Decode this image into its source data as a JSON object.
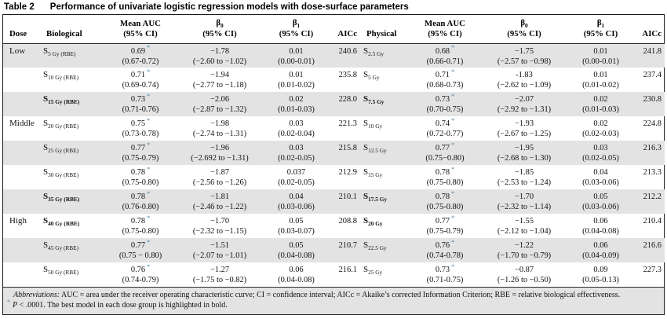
{
  "title": {
    "label": "Table 2",
    "caption": "Performance of univariate logistic regression models with dose-surface parameters"
  },
  "columns": {
    "dose": "Dose",
    "biological": "Biological",
    "physical": "Physical",
    "aicc": "AICc",
    "mean_auc": {
      "line1": "Mean AUC",
      "line2": "(95% CI)"
    },
    "beta0": {
      "base": "β",
      "sub": "0",
      "line2": "(95% CI)"
    },
    "beta1": {
      "base": "β",
      "sub": "1",
      "line2": "(95% CI)"
    }
  },
  "colors": {
    "row_shading": "#e3e3e3",
    "footnote_background": "#e3e3e3",
    "border": "#1c1c1c",
    "asterisk_marker": "#4f81a4"
  },
  "rows": [
    {
      "dose": "Low",
      "best": false,
      "shaded": true,
      "bio": {
        "base": "S",
        "sub": "5 Gy (RBE)",
        "auc": "0.69",
        "marker": "*",
        "auc_ci": "(0.67-0.72)",
        "b0": "−1.78",
        "b0_ci": "(−2.60 to −1.02)",
        "b1": "0.01",
        "b1_ci": "(0.00-0.01)",
        "aicc": "240.6"
      },
      "phys": {
        "base": "S",
        "sub": "2.5 Gy",
        "auc": "0.68",
        "marker": "*",
        "auc_ci": "(0.66-0.71)",
        "b0": "−1.75",
        "b0_ci": "(−2.57 to −0.98)",
        "b1": "0.01",
        "b1_ci": "(0.00-0.01)",
        "aicc": "241.8"
      }
    },
    {
      "dose": "",
      "best": false,
      "shaded": false,
      "bio": {
        "base": "S",
        "sub": "10 Gy (RBE)",
        "auc": "0.71",
        "marker": "*",
        "auc_ci": "(0.69-0.74)",
        "b0": "−1.94",
        "b0_ci": "(−2.77 to −1.18)",
        "b1": "0.01",
        "b1_ci": "(0.01-0.02)",
        "aicc": "235.8"
      },
      "phys": {
        "base": "S",
        "sub": "5 Gy",
        "auc": "0.71",
        "marker": "*",
        "auc_ci": "(0.68-0.73)",
        "b0": "-1.83",
        "b0_ci": "(−2.62 to −1.09)",
        "b1": "0.01",
        "b1_ci": "(0.01-0.02)",
        "aicc": "237.4"
      }
    },
    {
      "dose": "",
      "best": true,
      "shaded": true,
      "bio": {
        "base": "S",
        "sub": "15 Gy (RBE)",
        "auc": "0.73",
        "marker": "*",
        "auc_ci": "(0.71-0.76)",
        "b0": "−2.06",
        "b0_ci": "(−2.87 to −1.32)",
        "b1": "0.02",
        "b1_ci": "(0.01-0.03)",
        "aicc": "228.0"
      },
      "phys": {
        "base": "S",
        "sub": "7.5 Gy",
        "auc": "0.73",
        "marker": "*",
        "auc_ci": "(0.70-0.75)",
        "b0": "−2.07",
        "b0_ci": "(−2.92 to −1.31)",
        "b1": "0.02",
        "b1_ci": "(0.01-0.03)",
        "aicc": "230.8"
      }
    },
    {
      "dose": "Middle",
      "best": false,
      "shaded": false,
      "bio": {
        "base": "S",
        "sub": "20 Gy (RBE)",
        "auc": "0.75",
        "marker": "*",
        "auc_ci": "(0.73-0.78)",
        "b0": "−1.98",
        "b0_ci": "(−2.74 to −1.31)",
        "b1": "0.03",
        "b1_ci": "(0.02-0.04)",
        "aicc": "221.3"
      },
      "phys": {
        "base": "S",
        "sub": "10 Gy",
        "auc": "0.74",
        "marker": "*",
        "auc_ci": "(0.72-0.77)",
        "b0": "−1.93",
        "b0_ci": "(−2.67 to −1.25)",
        "b1": "0.02",
        "b1_ci": "(0.02-0.03)",
        "aicc": "224.8"
      }
    },
    {
      "dose": "",
      "best": false,
      "shaded": true,
      "bio": {
        "base": "S",
        "sub": "25 Gy (RBE)",
        "auc": "0.77",
        "marker": "*",
        "auc_ci": "(0.75-0.79)",
        "b0": "−1.96",
        "b0_ci": "(−2.692 to −1.31)",
        "b1": "0.03",
        "b1_ci": "(0.02-0.05)",
        "aicc": "215.8"
      },
      "phys": {
        "base": "S",
        "sub": "12.5 Gy",
        "auc": "0.77",
        "marker": "*",
        "auc_ci": "(0.75−0.80)",
        "b0": "−1.95",
        "b0_ci": "(−2.68 to −1.30)",
        "b1": "0.03",
        "b1_ci": "(0.02-0.05)",
        "aicc": "216.3"
      }
    },
    {
      "dose": "",
      "best": false,
      "shaded": false,
      "bio": {
        "base": "S",
        "sub": "30 Gy (RBE)",
        "auc": "0.78",
        "marker": "*",
        "auc_ci": "(0.75-0.80)",
        "b0": "−1.87",
        "b0_ci": "(−2.56 to −1.26)",
        "b1": "0.037",
        "b1_ci": "(0.02-0.05)",
        "aicc": "212.9"
      },
      "phys": {
        "base": "S",
        "sub": "15 Gy",
        "auc": "0.78",
        "marker": "*",
        "auc_ci": "(0.75-0.80)",
        "b0": "−1.85",
        "b0_ci": "(−2.53 to −1.24)",
        "b1": "0.04",
        "b1_ci": "(0.03-0.06)",
        "aicc": "213.3"
      }
    },
    {
      "dose": "",
      "best": true,
      "shaded": true,
      "bio": {
        "base": "S",
        "sub": "35 Gy (RBE)",
        "auc": "0.78",
        "marker": "*",
        "auc_ci": "(0.76-0.80)",
        "b0": "−1.81",
        "b0_ci": "(−2.46 to −1.22)",
        "b1": "0.04",
        "b1_ci": "(0.03-0.06)",
        "aicc": "210.1"
      },
      "phys": {
        "base": "S",
        "sub": "17.5 Gy",
        "auc": "0.78",
        "marker": "*",
        "auc_ci": "(0.75-0.80)",
        "b0": "−1.70",
        "b0_ci": "(−2.32 to −1.14)",
        "b1": "0.05",
        "b1_ci": "(0.03-0.06)",
        "aicc": "212.2"
      }
    },
    {
      "dose": "High",
      "best": true,
      "shaded": false,
      "bio": {
        "base": "S",
        "sub": "40 Gy (RBE)",
        "auc": "0.78",
        "marker": "*",
        "auc_ci": "(0.75-0.80)",
        "b0": "−1.70",
        "b0_ci": "(−2.32 to −1.15)",
        "b1": "0.05",
        "b1_ci": "(0.03-0.07)",
        "aicc": "208.8"
      },
      "phys": {
        "base": "S",
        "sub": "20 Gy",
        "auc": "0.77",
        "marker": "*",
        "auc_ci": "(0.75-0.79)",
        "b0": "−1.55",
        "b0_ci": "(−2.12 to −1.04)",
        "b1": "0.06",
        "b1_ci": "(0.04-0.08)",
        "aicc": "210.4"
      }
    },
    {
      "dose": "",
      "best": false,
      "shaded": true,
      "bio": {
        "base": "S",
        "sub": "45 Gy (RBE)",
        "auc": "0.77",
        "marker": "*",
        "auc_ci": "(0.75 − 0.80)",
        "b0": "−1.51",
        "b0_ci": "(−2.07 to −1.01)",
        "b1": "0.05",
        "b1_ci": "(0.04-0.08)",
        "aicc": "210.7"
      },
      "phys": {
        "base": "S",
        "sub": "22.5 Gy",
        "auc": "0.76",
        "marker": "*",
        "auc_ci": "(0.74-0.78)",
        "b0": "−1.22",
        "b0_ci": "(−1.70 to −0.79)",
        "b1": "0.06",
        "b1_ci": "(0.04-0.09)",
        "aicc": "216.6"
      }
    },
    {
      "dose": "",
      "best": false,
      "shaded": false,
      "bio": {
        "base": "S",
        "sub": "50 Gy (RBE)",
        "auc": "0.76",
        "marker": "*",
        "auc_ci": "(0.74-0.79)",
        "b0": "−1.27",
        "b0_ci": "(−1.75 to −0.82)",
        "b1": "0.06",
        "b1_ci": "(0.04-0.08)",
        "aicc": "216.1"
      },
      "phys": {
        "base": "S",
        "sub": "25 Gy",
        "auc": "0.73",
        "marker": "*",
        "auc_ci": "(0.71-0.75)",
        "b0": "−0.87",
        "b0_ci": "(−1.26 to −0.50)",
        "b1": "0.09",
        "b1_ci": "(0.05-0.13)",
        "aicc": "227.3"
      }
    }
  ],
  "footnotes": {
    "abbreviations_label": "Abbreviations:",
    "abbreviations_text": " AUC = area under the receiver operating characteristic curve; CI = confidence interval; AICc = Akaike’s corrected Information Criterion; RBE = relative biological effectiveness.",
    "marker": "*",
    "significance_p": "P",
    "significance_text": " < .0001. The best model in each dose group is highlighted in bold."
  }
}
